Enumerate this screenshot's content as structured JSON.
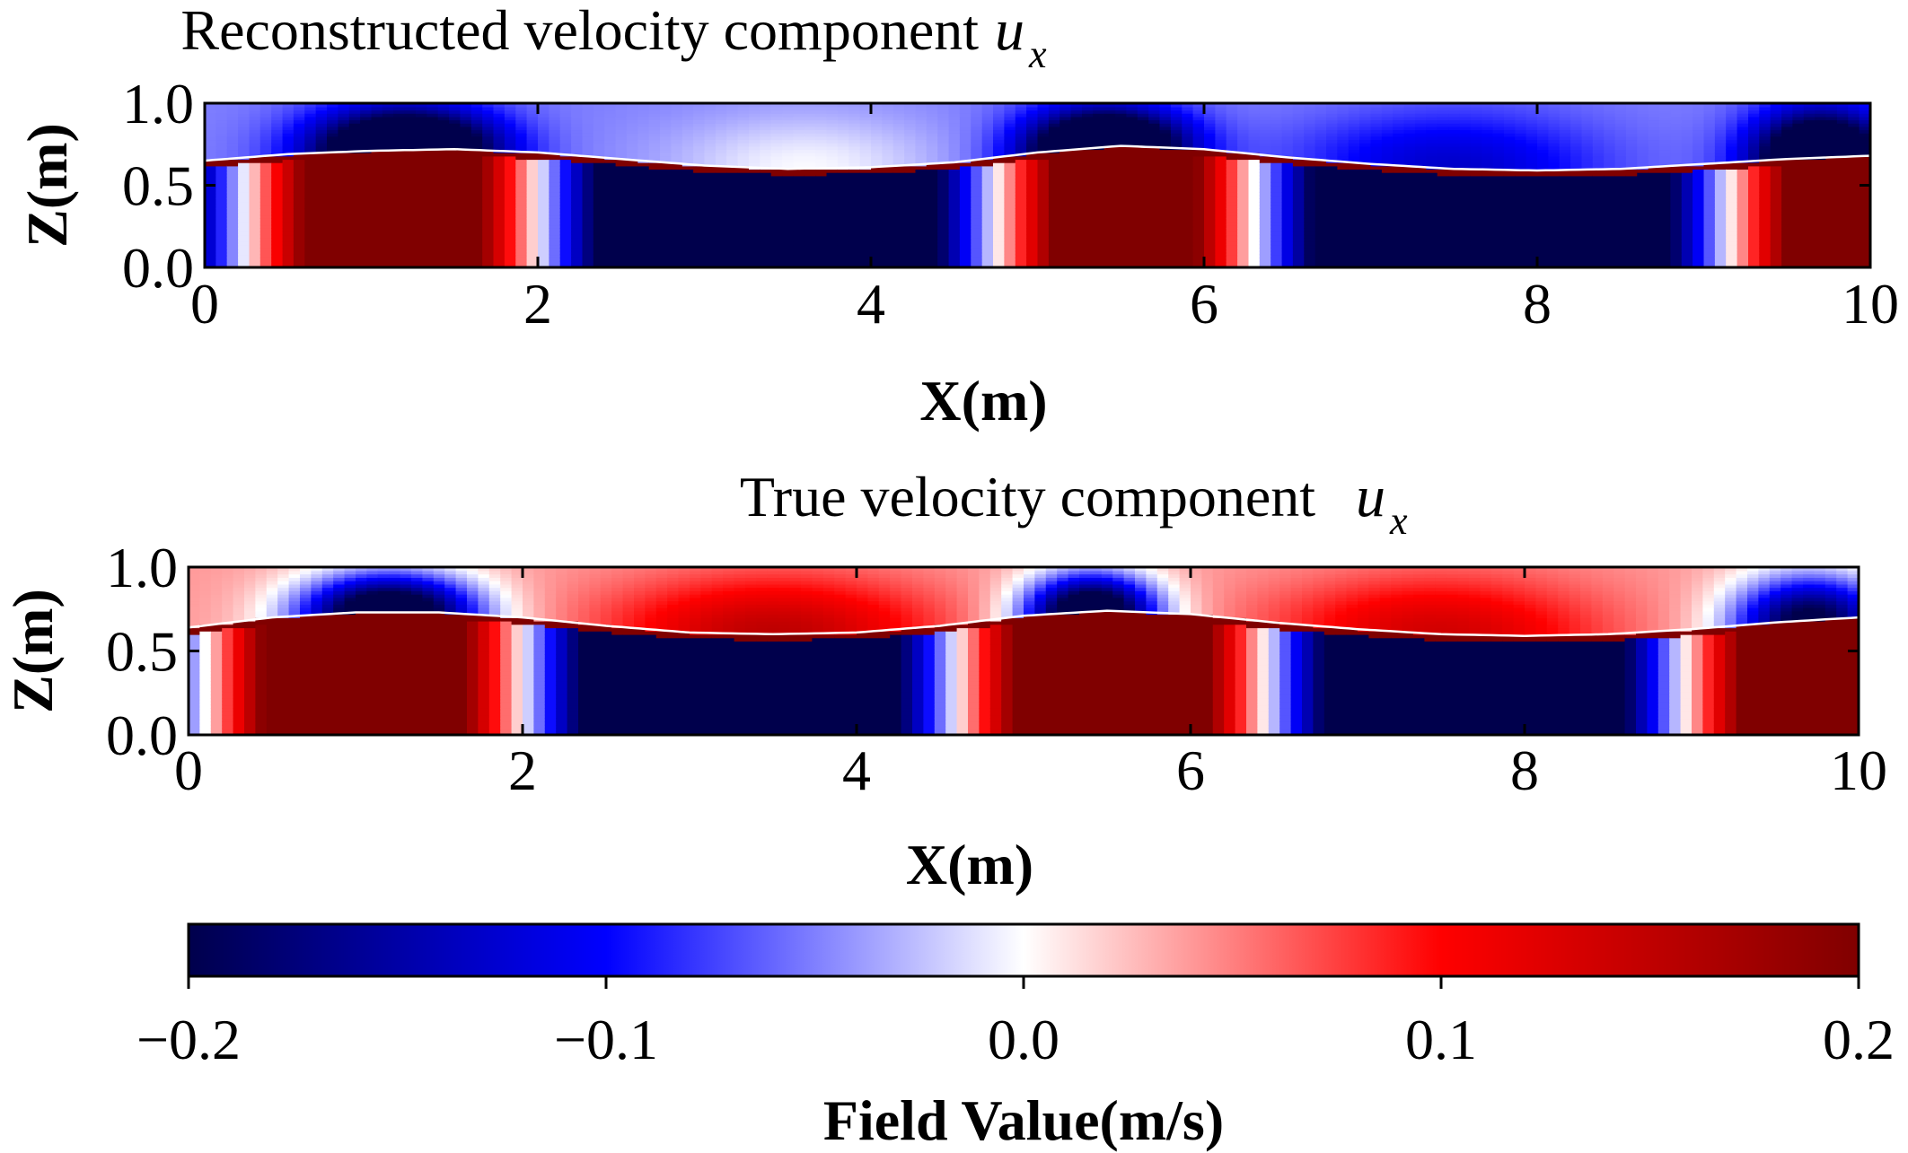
{
  "chart_data": [
    {
      "type": "heatmap",
      "title": "Reconstructed velocity component",
      "title_math": "u",
      "title_math_subscript": "x",
      "xlabel": "X(m)",
      "ylabel": "Z(m)",
      "xlim": [
        0,
        10
      ],
      "ylim": [
        0,
        1
      ],
      "x_ticks": [
        0,
        2,
        4,
        6,
        8,
        10
      ],
      "x_tick_labels": [
        "0",
        "2",
        "4",
        "6",
        "8",
        "10"
      ],
      "y_ticks": [
        0,
        0.5,
        1.0
      ],
      "y_tick_labels": [
        "0.0",
        "0.5",
        "1.0"
      ],
      "field": "horizontal velocity u_x",
      "free_surface": {
        "x": [
          0,
          0.5,
          1.0,
          1.5,
          2.0,
          2.5,
          3.0,
          3.5,
          4.0,
          4.5,
          5.0,
          5.5,
          6.0,
          6.5,
          7.0,
          7.5,
          8.0,
          8.5,
          9.0,
          9.5,
          10.0
        ],
        "z": [
          0.65,
          0.69,
          0.71,
          0.72,
          0.7,
          0.66,
          0.62,
          0.6,
          0.61,
          0.64,
          0.7,
          0.74,
          0.72,
          0.67,
          0.63,
          0.6,
          0.59,
          0.6,
          0.63,
          0.66,
          0.68
        ]
      },
      "lower_layer_sign_changes_x": [
        0.25,
        2.0,
        4.75,
        6.3,
        9.15
      ],
      "lower_layer_signs": [
        -1,
        1,
        -1,
        1,
        -1,
        1
      ],
      "air_bubbles": [
        {
          "x": 1.2,
          "sign": -1,
          "strength": 1.0,
          "width": 0.8
        },
        {
          "x": 3.6,
          "sign": 1,
          "strength": 0.15,
          "width": 1.2
        },
        {
          "x": 5.4,
          "sign": -1,
          "strength": 1.0,
          "width": 0.7
        },
        {
          "x": 7.5,
          "sign": -1,
          "strength": 0.25,
          "width": 1.3
        },
        {
          "x": 9.7,
          "sign": -1,
          "strength": 0.9,
          "width": 0.6
        }
      ],
      "air_base_sign": -1,
      "air_base_strength": 0.25
    },
    {
      "type": "heatmap",
      "title": "True velocity component",
      "title_math": "u",
      "title_math_subscript": "x",
      "xlabel": "X(m)",
      "ylabel": "Z(m)",
      "xlim": [
        0,
        10
      ],
      "ylim": [
        0,
        1
      ],
      "x_ticks": [
        0,
        2,
        4,
        6,
        8,
        10
      ],
      "x_tick_labels": [
        "0",
        "2",
        "4",
        "6",
        "8",
        "10"
      ],
      "y_ticks": [
        0,
        0.5,
        1.0
      ],
      "y_tick_labels": [
        "0.0",
        "0.5",
        "1.0"
      ],
      "field": "horizontal velocity u_x",
      "free_surface": {
        "x": [
          0,
          0.5,
          1.0,
          1.5,
          2.0,
          2.5,
          3.0,
          3.5,
          4.0,
          4.5,
          5.0,
          5.5,
          6.0,
          6.5,
          7.0,
          7.5,
          8.0,
          8.5,
          9.0,
          9.5,
          10.0
        ],
        "z": [
          0.64,
          0.7,
          0.73,
          0.73,
          0.7,
          0.65,
          0.61,
          0.6,
          0.61,
          0.65,
          0.71,
          0.74,
          0.72,
          0.67,
          0.63,
          0.6,
          0.59,
          0.6,
          0.63,
          0.67,
          0.7
        ]
      },
      "lower_layer_sign_changes_x": [
        0.1,
        2.0,
        4.6,
        6.45,
        8.95
      ],
      "lower_layer_signs": [
        -1,
        1,
        -1,
        1,
        -1,
        1
      ],
      "air_bubbles": [
        {
          "x": 1.2,
          "sign": -1,
          "strength": 1.0,
          "width": 0.8
        },
        {
          "x": 3.5,
          "sign": 1,
          "strength": 0.35,
          "width": 1.4
        },
        {
          "x": 5.4,
          "sign": -1,
          "strength": 1.0,
          "width": 0.6
        },
        {
          "x": 7.5,
          "sign": 1,
          "strength": 0.3,
          "width": 1.4
        },
        {
          "x": 9.7,
          "sign": -1,
          "strength": 0.8,
          "width": 0.7
        }
      ],
      "air_base_sign": 1,
      "air_base_strength": 0.2
    }
  ],
  "colorbar": {
    "label": "Field Value(m/s)",
    "range": [
      -0.2,
      0.2
    ],
    "ticks": [
      -0.2,
      -0.1,
      0.0,
      0.1,
      0.2
    ],
    "tick_labels": [
      "−0.2",
      "−0.1",
      "0.0",
      "0.1",
      "0.2"
    ],
    "colormap": "seismic",
    "colors": {
      "dark_blue": "#00004c",
      "blue": "#0000ff",
      "white": "#ffffff",
      "red": "#ff0000",
      "dark_red": "#800000"
    }
  }
}
